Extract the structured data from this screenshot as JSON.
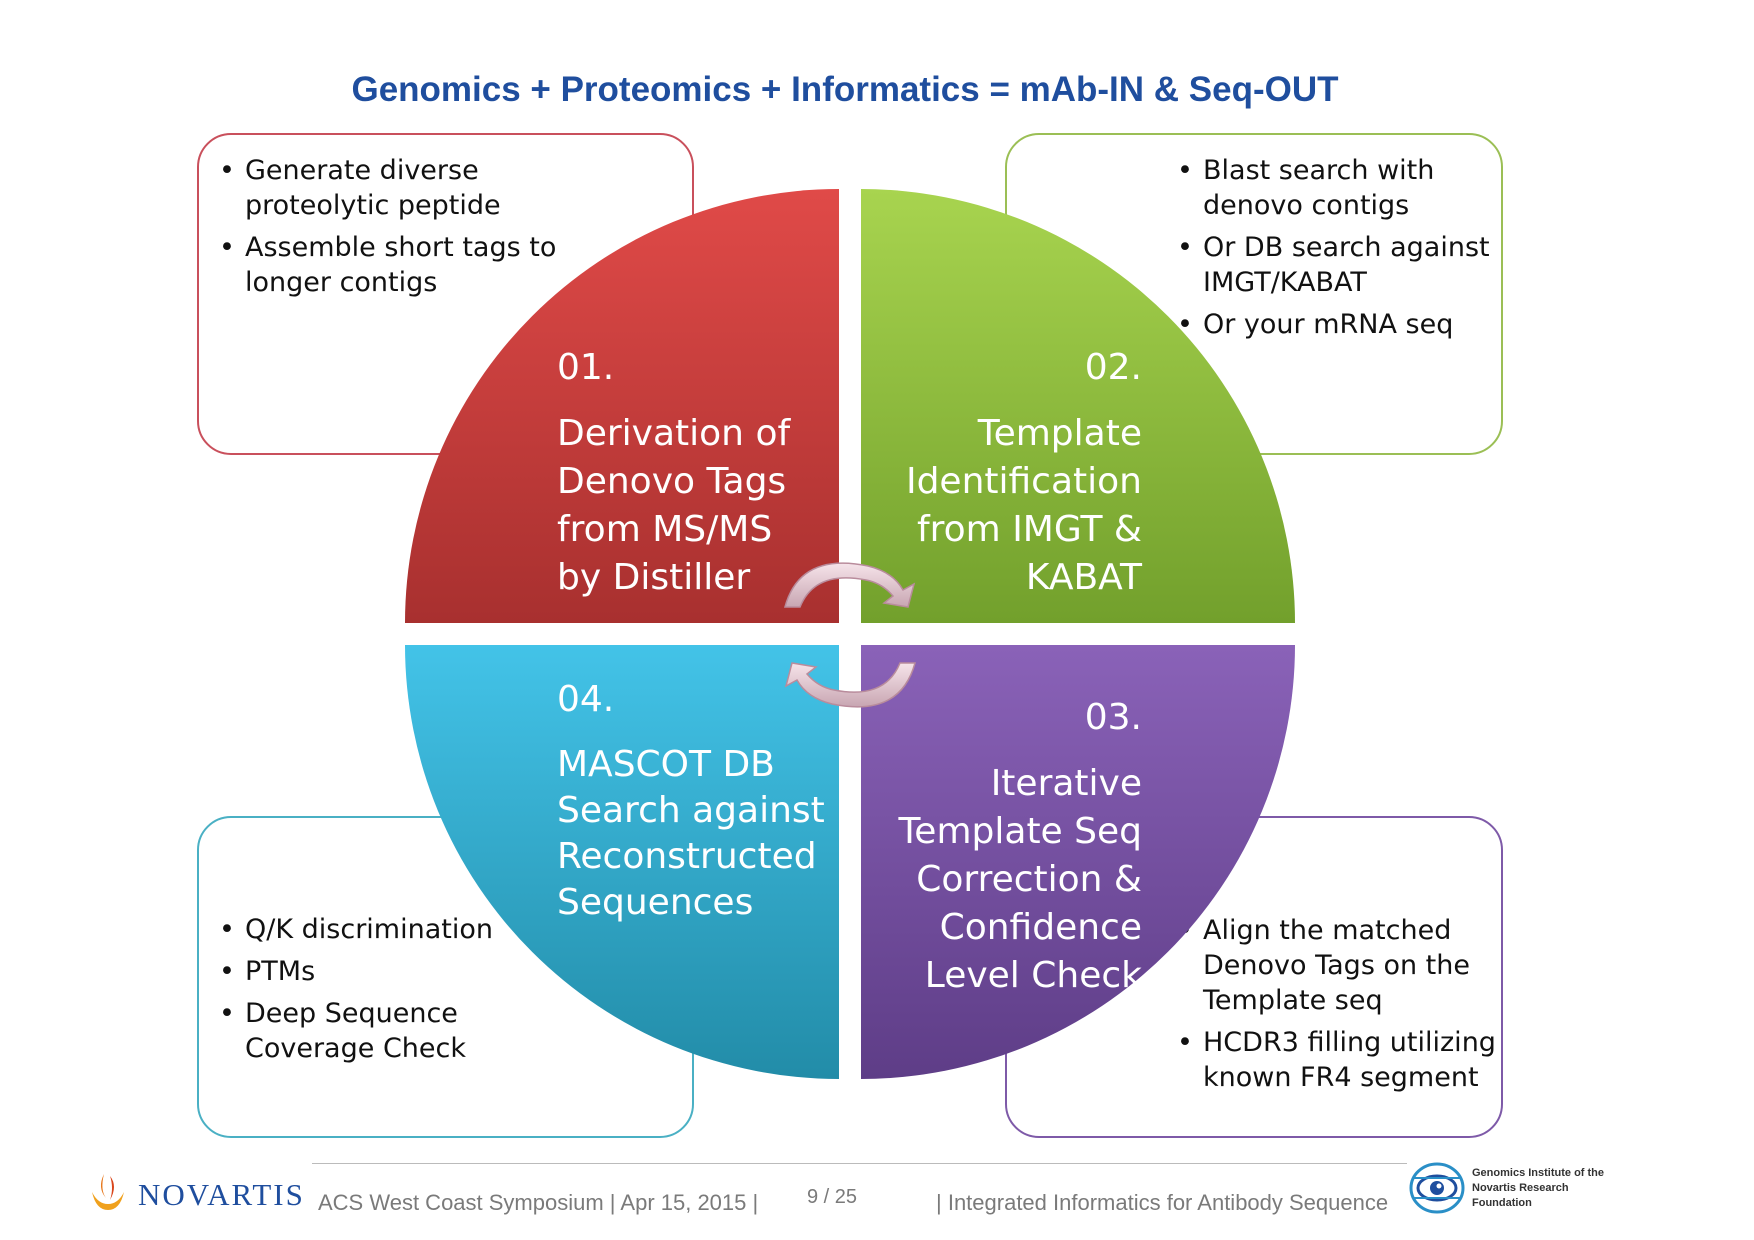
{
  "title": "Genomics + Proteomics + Informatics = mAb-IN & Seq-OUT",
  "quadrants": [
    {
      "number": "01.",
      "lines": [
        "Derivation of",
        "Denovo Tags",
        "from MS/MS",
        "by Distiller"
      ],
      "color": "#c43a3a"
    },
    {
      "number": "02.",
      "lines": [
        "Template",
        "Identification",
        "from IMGT &",
        "KABAT"
      ],
      "color": "#8cbb3b"
    },
    {
      "number": "03.",
      "lines": [
        "Iterative",
        "Template Seq",
        "Correction &",
        "Confidence",
        "Level Check"
      ],
      "color": "#7552a0"
    },
    {
      "number": "04.",
      "lines": [
        "MASCOT DB",
        "Search against",
        "Reconstructed",
        "Sequences"
      ],
      "color": "#2fa9cf"
    }
  ],
  "boxes": [
    {
      "bullets": [
        "Generate diverse proteolytic peptide",
        "Assemble short tags to longer contigs"
      ]
    },
    {
      "bullets": [
        "Blast search with denovo contigs",
        "Or DB search against IMGT/KABAT",
        "Or your mRNA seq"
      ]
    },
    {
      "bullets": [
        "Q/K discrimination",
        "PTMs",
        "Deep Sequence Coverage Check"
      ]
    },
    {
      "bullets": [
        "Align the matched Denovo Tags on the Template seq",
        "HCDR3 filling utilizing known FR4 segment"
      ]
    }
  ],
  "footer": {
    "logo_text": "NOVARTIS",
    "event": "ACS West Coast Symposium | Apr 15, 2015 |",
    "page": "9 / 25",
    "subtitle": "| Integrated Informatics for Antibody Sequence",
    "gnf_lines": [
      "Genomics Institute of the",
      "Novartis Research",
      "Foundation"
    ]
  },
  "icons": [
    "novartis-flame-icon",
    "gnf-logo-icon",
    "cycle-arrow-icon"
  ]
}
